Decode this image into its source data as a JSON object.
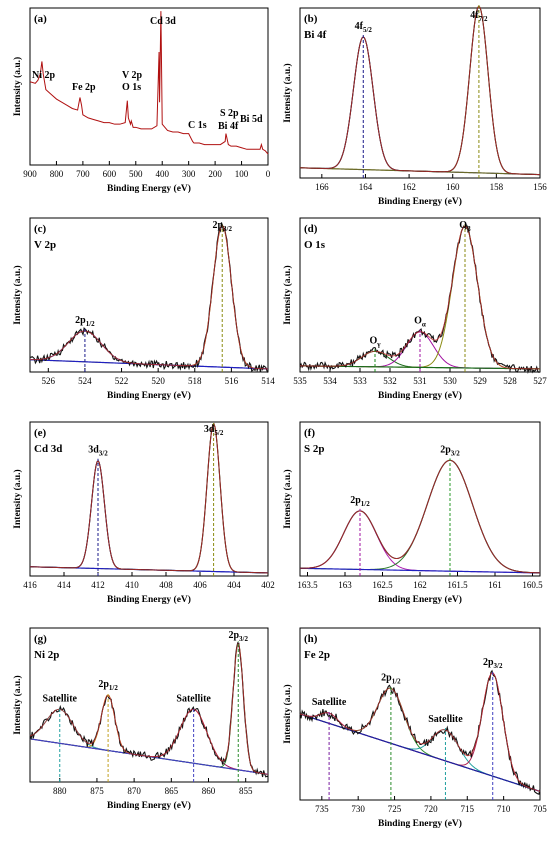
{
  "chart_data": [
    {
      "type": "line",
      "panel": "(a)",
      "xlabel": "Binding Energy (eV)",
      "ylabel": "Intensity (a.u.)",
      "xlim": [
        900,
        0
      ],
      "xticks": [
        900,
        800,
        700,
        600,
        500,
        400,
        300,
        200,
        100,
        0
      ],
      "annotations": [
        {
          "label": "Ni 2p",
          "x": 855
        },
        {
          "label": "Fe 2p",
          "x": 711
        },
        {
          "label": "V 2p",
          "x": 517
        },
        {
          "label": "O 1s",
          "x": 530
        },
        {
          "label": "Cd 3d",
          "x": 405
        },
        {
          "label": "C 1s",
          "x": 285
        },
        {
          "label": "S 2p",
          "x": 162
        },
        {
          "label": "Bi 4f",
          "x": 159
        },
        {
          "label": "Bi 5d",
          "x": 25
        }
      ],
      "series": [
        {
          "color": "#b01010",
          "x": [
            900,
            880,
            870,
            861,
            855,
            850,
            840,
            820,
            800,
            780,
            760,
            740,
            720,
            711,
            705,
            700,
            680,
            660,
            640,
            620,
            600,
            580,
            560,
            540,
            532,
            528,
            520,
            517,
            510,
            500,
            480,
            460,
            440,
            420,
            412,
            410,
            405,
            402,
            400,
            380,
            360,
            340,
            320,
            300,
            285,
            280,
            260,
            240,
            220,
            200,
            180,
            162,
            159,
            150,
            140,
            120,
            100,
            80,
            60,
            40,
            30,
            25,
            20,
            10,
            0
          ],
          "values": [
            0.53,
            0.52,
            0.54,
            0.58,
            0.66,
            0.58,
            0.48,
            0.45,
            0.42,
            0.4,
            0.38,
            0.36,
            0.35,
            0.43,
            0.38,
            0.32,
            0.3,
            0.29,
            0.28,
            0.27,
            0.27,
            0.26,
            0.26,
            0.27,
            0.41,
            0.3,
            0.26,
            0.28,
            0.24,
            0.24,
            0.23,
            0.23,
            0.23,
            0.25,
            0.72,
            0.4,
            0.98,
            0.55,
            0.26,
            0.22,
            0.21,
            0.21,
            0.2,
            0.2,
            0.15,
            0.14,
            0.14,
            0.13,
            0.13,
            0.13,
            0.13,
            0.15,
            0.2,
            0.13,
            0.12,
            0.12,
            0.11,
            0.1,
            0.1,
            0.1,
            0.1,
            0.13,
            0.1,
            0.09,
            0.07
          ]
        }
      ]
    },
    {
      "type": "line",
      "panel": "(b)",
      "title": "Bi 4f",
      "xlabel": "Binding Energy (eV)",
      "ylabel": "Intensity (a.u.)",
      "xlim": [
        167,
        156
      ],
      "xticks": [
        166,
        164,
        162,
        160,
        158,
        156
      ],
      "annotations": [
        {
          "label": "4f",
          "sub": "5/2",
          "x": 164.1
        },
        {
          "label": "4f",
          "sub": "7/2",
          "x": 158.8
        }
      ],
      "peaks": [
        {
          "center": 164.1,
          "height": 0.78,
          "width": 0.45,
          "color": "#1a1a8a"
        },
        {
          "center": 158.8,
          "height": 0.98,
          "width": 0.42,
          "color": "#8a8a10"
        }
      ],
      "background": {
        "color": "#6a6a2a",
        "left": 0.06,
        "right": 0.02
      },
      "markers": [
        {
          "x": 164.1,
          "color": "#1a1a8a"
        },
        {
          "x": 158.8,
          "color": "#8a8a10"
        }
      ]
    },
    {
      "type": "line",
      "panel": "(c)",
      "title": "V 2p",
      "xlabel": "Binding Energy (eV)",
      "ylabel": "Intensity (a.u.)",
      "xlim": [
        527,
        514
      ],
      "xticks": [
        526,
        524,
        522,
        520,
        518,
        516,
        514
      ],
      "annotations": [
        {
          "label": "2p",
          "sub": "1/2",
          "x": 524.0
        },
        {
          "label": "2p",
          "sub": "3/2",
          "x": 516.5
        }
      ],
      "peaks": [
        {
          "center": 524.0,
          "height": 0.2,
          "width": 0.9,
          "color": "#1a1a8a"
        },
        {
          "center": 516.5,
          "height": 0.92,
          "width": 0.5,
          "color": "#8a8a10"
        }
      ],
      "background": {
        "color": "#2020c0",
        "left": 0.08,
        "right": 0.02
      },
      "markers": [
        {
          "x": 524.0,
          "color": "#1a1a8a"
        },
        {
          "x": 516.5,
          "color": "#8a8a10"
        }
      ],
      "noisy": true
    },
    {
      "type": "line",
      "panel": "(d)",
      "title": "O 1s",
      "xlabel": "Binding Energy (eV)",
      "ylabel": "Intensity (a.u.)",
      "xlim": [
        535,
        527
      ],
      "xticks": [
        535,
        534,
        533,
        532,
        531,
        530,
        529,
        528,
        527
      ],
      "annotations": [
        {
          "label": "O",
          "sub": "γ",
          "x": 532.5
        },
        {
          "label": "O",
          "sub": "α",
          "x": 531.0
        },
        {
          "label": "O",
          "sub": "β",
          "x": 529.5
        }
      ],
      "peaks": [
        {
          "center": 532.5,
          "height": 0.1,
          "width": 0.45,
          "color": "#1a6a1a"
        },
        {
          "center": 531.0,
          "height": 0.23,
          "width": 0.45,
          "color": "#a010a0"
        },
        {
          "center": 529.5,
          "height": 0.92,
          "width": 0.42,
          "color": "#8a8a10"
        }
      ],
      "background": {
        "color": "#1a6a1a",
        "left": 0.04,
        "right": 0.02
      },
      "markers": [
        {
          "x": 532.5,
          "color": "#1a8a1a"
        },
        {
          "x": 531.0,
          "color": "#a010a0"
        },
        {
          "x": 529.5,
          "color": "#8a8a10"
        }
      ],
      "noisy": true
    },
    {
      "type": "line",
      "panel": "(e)",
      "title": "Cd 3d",
      "xlabel": "Binding Energy (eV)",
      "ylabel": "Intensity (a.u.)",
      "xlim": [
        416,
        402
      ],
      "xticks": [
        416,
        414,
        412,
        410,
        408,
        406,
        404,
        402
      ],
      "annotations": [
        {
          "label": "3d",
          "sub": "3/2",
          "x": 412.0
        },
        {
          "label": "3d",
          "sub": "5/2",
          "x": 405.2
        }
      ],
      "peaks": [
        {
          "center": 412.0,
          "height": 0.7,
          "width": 0.38,
          "color": "#1a1a8a"
        },
        {
          "center": 405.2,
          "height": 0.96,
          "width": 0.38,
          "color": "#8a8a10"
        }
      ],
      "background": {
        "color": "#2020c0",
        "left": 0.06,
        "right": 0.02
      },
      "markers": [
        {
          "x": 412.0,
          "color": "#1a1a8a"
        },
        {
          "x": 405.2,
          "color": "#8a8a10"
        }
      ]
    },
    {
      "type": "line",
      "panel": "(f)",
      "title": "S 2p",
      "xlabel": "Binding Energy (eV)",
      "ylabel": "Intensity (a.u.)",
      "xlim": [
        163.6,
        160.4
      ],
      "xticks": [
        163.5,
        163.0,
        162.5,
        162.0,
        161.5,
        161.0,
        160.5
      ],
      "annotations": [
        {
          "label": "2p",
          "sub": "1/2",
          "x": 162.8
        },
        {
          "label": "2p",
          "sub": "3/2",
          "x": 161.6
        }
      ],
      "peaks": [
        {
          "center": 162.8,
          "height": 0.38,
          "width": 0.22,
          "color": "#b020b0"
        },
        {
          "center": 161.6,
          "height": 0.72,
          "width": 0.3,
          "color": "#2a7a2a"
        }
      ],
      "background": {
        "color": "#2020c0",
        "left": 0.05,
        "right": 0.02
      },
      "markers": [
        {
          "x": 162.8,
          "color": "#a010a0"
        },
        {
          "x": 161.6,
          "color": "#2a9a2a"
        }
      ]
    },
    {
      "type": "line",
      "panel": "(g)",
      "title": "Ni 2p",
      "xlabel": "Binding Energy (eV)",
      "ylabel": "Intensity (a.u.)",
      "xlim": [
        884,
        852
      ],
      "xticks": [
        880,
        875,
        870,
        865,
        860,
        855
      ],
      "annotations": [
        {
          "label": "Satellite",
          "x": 880
        },
        {
          "label": "2p",
          "sub": "1/2",
          "x": 873.5
        },
        {
          "label": "Satellite",
          "x": 862
        },
        {
          "label": "2p",
          "sub": "3/2",
          "x": 856
        }
      ],
      "peaks": [
        {
          "center": 880.0,
          "height": 0.22,
          "width": 1.8,
          "color": "#20a0a0"
        },
        {
          "center": 873.5,
          "height": 0.36,
          "width": 0.9,
          "color": "#c0a020"
        },
        {
          "center": 862.0,
          "height": 0.35,
          "width": 1.8,
          "color": "#a01060"
        },
        {
          "center": 856.0,
          "height": 0.82,
          "width": 0.7,
          "color": "#2a7a2a"
        }
      ],
      "background": {
        "color": "#4040c0",
        "left": 0.28,
        "right": 0.05
      },
      "markers": [
        {
          "x": 880.0,
          "color": "#20a0a0"
        },
        {
          "x": 873.5,
          "color": "#c0a020"
        },
        {
          "x": 862.0,
          "color": "#4040c0"
        },
        {
          "x": 856.0,
          "color": "#2a8a2a"
        }
      ],
      "noisy": true
    },
    {
      "type": "line",
      "panel": "(h)",
      "title": "Fe 2p",
      "xlabel": "Binding Energy (eV)",
      "ylabel": "Intensity (a.u.)",
      "xlim": [
        738,
        705
      ],
      "xticks": [
        735,
        730,
        725,
        720,
        715,
        710,
        705
      ],
      "annotations": [
        {
          "label": "Satellite",
          "x": 734
        },
        {
          "label": "2p",
          "sub": "1/2",
          "x": 725.5
        },
        {
          "label": "Satellite",
          "x": 718
        },
        {
          "label": "2p",
          "sub": "3/2",
          "x": 711.5
        }
      ],
      "peaks": [
        {
          "center": 734.0,
          "height": 0.06,
          "width": 1.2,
          "color": "#7a20a0"
        },
        {
          "center": 725.5,
          "height": 0.32,
          "width": 1.8,
          "color": "#2a8a2a"
        },
        {
          "center": 718.0,
          "height": 0.18,
          "width": 1.8,
          "color": "#20a0a0"
        },
        {
          "center": 711.5,
          "height": 0.6,
          "width": 1.4,
          "color": "#b02050"
        }
      ],
      "background": {
        "color": "#2020a0",
        "left": 0.5,
        "right": 0.05
      },
      "markers": [
        {
          "x": 734.0,
          "color": "#7a20a0"
        },
        {
          "x": 725.5,
          "color": "#2a8a2a"
        },
        {
          "x": 718.0,
          "color": "#20a0a0"
        },
        {
          "x": 711.5,
          "color": "#4040c0"
        }
      ],
      "noisy": true
    }
  ]
}
